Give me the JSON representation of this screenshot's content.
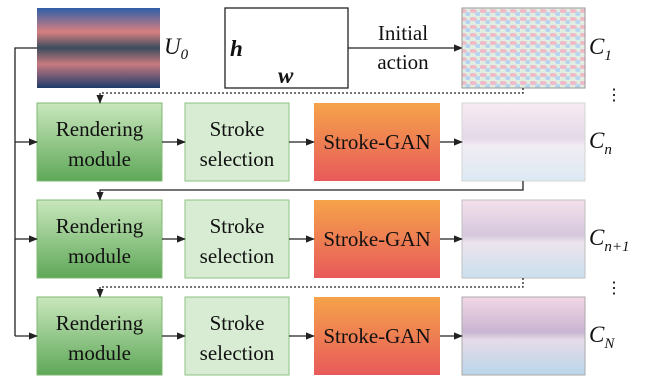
{
  "inputs": {
    "target": {
      "base": "U",
      "sub": "0"
    },
    "h": "h",
    "w": "w",
    "initial_action": [
      "Initial",
      "action"
    ]
  },
  "canvases": [
    {
      "base": "C",
      "sub": "1"
    },
    {
      "base": "C",
      "sub": "n"
    },
    {
      "base": "C",
      "sub": "n+1"
    },
    {
      "base": "C",
      "sub": "N"
    }
  ],
  "modules": [
    {
      "rendering": [
        "Rendering",
        "module"
      ],
      "selection": [
        "Stroke",
        "selection"
      ],
      "gan": "Stroke-GAN"
    },
    {
      "rendering": [
        "Rendering",
        "module"
      ],
      "selection": [
        "Stroke",
        "selection"
      ],
      "gan": "Stroke-GAN"
    },
    {
      "rendering": [
        "Rendering",
        "module"
      ],
      "selection": [
        "Stroke",
        "selection"
      ],
      "gan": "Stroke-GAN"
    }
  ],
  "ellipsis": [
    "⋮",
    "⋮"
  ]
}
